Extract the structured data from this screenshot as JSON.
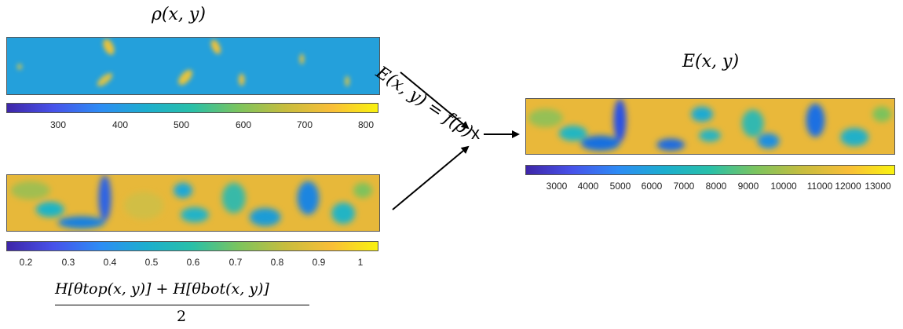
{
  "rho_panel": {
    "title": "ρ(x, y)",
    "colorbar_ticks": [
      "300",
      "400",
      "500",
      "600",
      "700",
      "800"
    ]
  },
  "h_panel": {
    "colorbar_ticks": [
      "0.2",
      "0.3",
      "0.4",
      "0.5",
      "0.6",
      "0.7",
      "0.8",
      "0.9",
      "1"
    ],
    "formula_numerator": "H[θtop(x, y)] + H[θbot(x, y)]",
    "formula_denominator": "2"
  },
  "operation": {
    "formula": "E(x, y) = f(ρ)",
    "multiply_symbol": "x"
  },
  "e_panel": {
    "title": "E(x, y)",
    "colorbar_ticks": [
      "3000",
      "4000",
      "5000",
      "6000",
      "7000",
      "8000",
      "9000",
      "10000",
      "11000",
      "12000",
      "13000"
    ]
  },
  "colors": {
    "parula_low": "#3e26a8",
    "parula_blue": "#2d8cf5",
    "parula_teal": "#1caecf",
    "parula_green": "#7cc45e",
    "parula_orange": "#f9be38",
    "parula_high": "#f9f20f"
  }
}
